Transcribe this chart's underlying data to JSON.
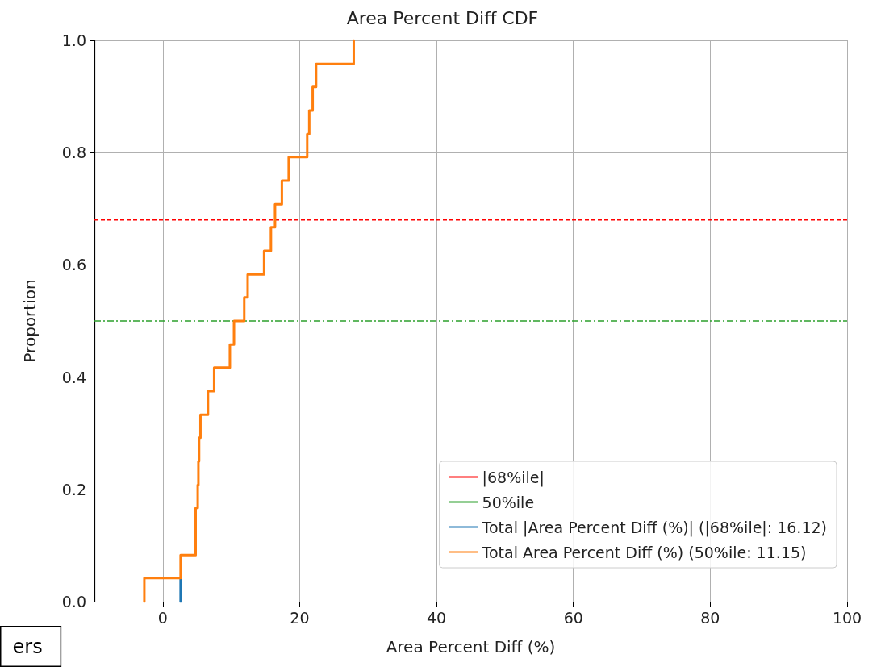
{
  "chart_data": {
    "type": "step",
    "title": "Area Percent Diff CDF",
    "xlabel": "Area Percent Diff (%)",
    "ylabel": "Proportion",
    "xlim": [
      -10,
      100
    ],
    "xticks": [
      0,
      20,
      40,
      60,
      80,
      100
    ],
    "ylim": [
      0,
      1
    ],
    "yticks": [
      {
        "value": 0,
        "label": "0.0"
      },
      {
        "value": 0.2,
        "label": "0.2"
      },
      {
        "value": 0.4,
        "label": "0.4"
      },
      {
        "value": 0.6,
        "label": "0.6"
      },
      {
        "value": 0.8,
        "label": "0.8"
      },
      {
        "value": 1,
        "label": "1.0"
      }
    ],
    "grid": true,
    "legend": "bottom right",
    "marker": "none",
    "ref_lines": [
      {
        "axis": "y",
        "value": 0.68,
        "label": "|68%ile|",
        "color": "#ff0000",
        "line_style": "dashed"
      },
      {
        "axis": "y",
        "value": 0.5,
        "label": "50%ile",
        "color": "#2ca02c",
        "line_style": "dashdot"
      }
    ],
    "series": [
      {
        "name": "Total |Area Percent Diff (%)| (|68%ile|: 16.12)",
        "color": "#1f77b4",
        "x": [
          2.6,
          2.6
        ],
        "values": [
          0,
          0.042
        ]
      },
      {
        "name": "Total Area Percent Diff (%) (50%ile: 11.15)",
        "color": "#ff7f0e",
        "x": [
          -2.7,
          -2.7,
          2.6,
          4.8,
          4.8,
          5.1,
          5.2,
          5.3,
          5.5,
          6.6,
          7.5,
          9.8,
          10.4,
          11.9,
          12.4,
          14.8,
          15.8,
          16.4,
          17.4,
          18.4,
          21.1,
          21.4,
          21.9,
          22.4,
          27.9
        ],
        "values": [
          0,
          0.042,
          0.083,
          0.125,
          0.167,
          0.208,
          0.25,
          0.292,
          0.333,
          0.375,
          0.417,
          0.458,
          0.5,
          0.542,
          0.583,
          0.625,
          0.667,
          0.708,
          0.75,
          0.792,
          0.833,
          0.875,
          0.917,
          0.958,
          1.0
        ]
      }
    ],
    "annotations": [
      "ers"
    ]
  }
}
